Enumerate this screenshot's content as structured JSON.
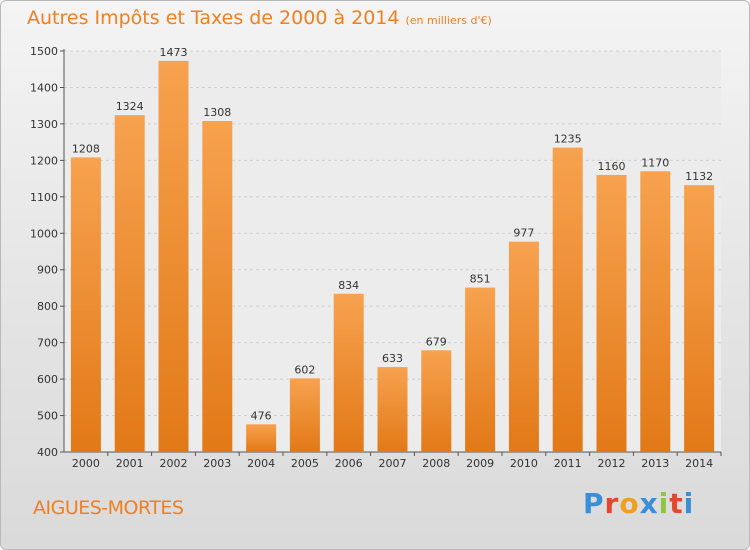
{
  "header": {
    "title": "Autres Impôts et Taxes de 2000 à 2014",
    "unit": "(en milliers d'€)"
  },
  "footer": {
    "city": "AIGUES-MORTES",
    "logo_letters": [
      "P",
      "r",
      "o",
      "x",
      "i",
      "t",
      "i"
    ]
  },
  "colors": {
    "accent": "#f07f20",
    "bar_top": "#f7a24f",
    "bar_bottom": "#e27917",
    "logo": [
      "#3a8ed8",
      "#e8442e",
      "#f0a020",
      "#3a8ed8",
      "#8dc63f",
      "#e8442e",
      "#3a8ed8"
    ]
  },
  "chart_data": {
    "type": "bar",
    "categories": [
      "2000",
      "2001",
      "2002",
      "2003",
      "2004",
      "2005",
      "2006",
      "2007",
      "2008",
      "2009",
      "2010",
      "2011",
      "2012",
      "2013",
      "2014"
    ],
    "values": [
      1208,
      1324,
      1473,
      1308,
      476,
      602,
      834,
      633,
      679,
      851,
      977,
      1235,
      1160,
      1170,
      1132
    ],
    "title": "Autres Impôts et Taxes de 2000 à 2014",
    "ylim": [
      400,
      1500
    ],
    "yticks": [
      400,
      500,
      600,
      700,
      800,
      900,
      1000,
      1100,
      1200,
      1300,
      1400,
      1500
    ],
    "grid": true,
    "data_labels": true
  }
}
